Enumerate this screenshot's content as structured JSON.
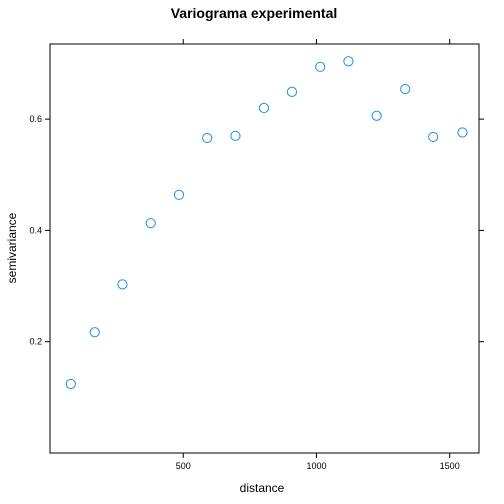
{
  "chart_data": {
    "type": "scatter",
    "title": "Variograma experimental",
    "xlabel": "distance",
    "ylabel": "semivariance",
    "xlim": [
      0,
      1610
    ],
    "ylim": [
      0,
      0.735
    ],
    "xticks": [
      500,
      1000,
      1500
    ],
    "yticks": [
      0.2,
      0.4,
      0.6
    ],
    "xtick_labels": [
      "500",
      "1000",
      "1500"
    ],
    "ytick_labels": [
      "0.2",
      "0.4",
      "0.6"
    ],
    "grid": false,
    "marker": "open-circle",
    "point_color": "#1E90E0",
    "points": [
      {
        "x": 78,
        "y": 0.124
      },
      {
        "x": 168,
        "y": 0.217
      },
      {
        "x": 272,
        "y": 0.303
      },
      {
        "x": 378,
        "y": 0.413
      },
      {
        "x": 484,
        "y": 0.464
      },
      {
        "x": 590,
        "y": 0.566
      },
      {
        "x": 696,
        "y": 0.57
      },
      {
        "x": 803,
        "y": 0.62
      },
      {
        "x": 908,
        "y": 0.649
      },
      {
        "x": 1014,
        "y": 0.694
      },
      {
        "x": 1120,
        "y": 0.704
      },
      {
        "x": 1226,
        "y": 0.606
      },
      {
        "x": 1333,
        "y": 0.654
      },
      {
        "x": 1438,
        "y": 0.568
      },
      {
        "x": 1548,
        "y": 0.576
      }
    ]
  }
}
